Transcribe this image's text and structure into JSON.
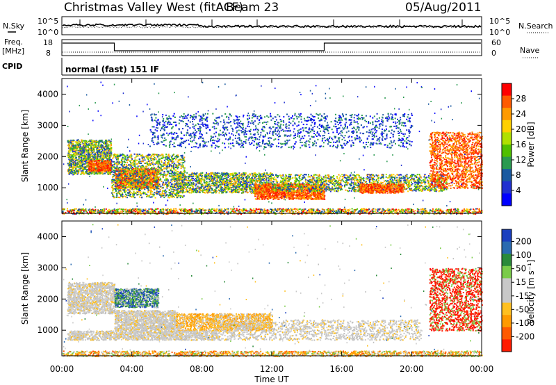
{
  "header": {
    "station": "Christmas Valley West (fitACF)",
    "beam": "Beam 23",
    "date": "05/Aug/2011"
  },
  "summary_panels": {
    "nsky_label": "N.Sky",
    "nsearch_label": "N.Search",
    "nsky_ticks": [
      "10^5",
      "10^0"
    ],
    "nsearch_ticks": [
      "10^5",
      "10^0"
    ],
    "freq_label_1": "Freq.",
    "freq_label_2": "[MHz]",
    "freq_ticks": [
      "18",
      "8"
    ],
    "nave_label": "Nave",
    "nave_ticks": [
      "60",
      "0"
    ],
    "cpid_label": "CPID",
    "cpid_text": "normal (fast) 151 IF"
  },
  "colorbars": {
    "power": {
      "label": "Power [dB]",
      "ticks": [
        "28",
        "24",
        "20",
        "16",
        "12",
        "8",
        "4"
      ],
      "colors": [
        "#ff0000",
        "#ff5a00",
        "#ff9a00",
        "#ffd000",
        "#b0e000",
        "#50c000",
        "#2a9a50",
        "#1a5aa0",
        "#2030d0",
        "#0000ff"
      ]
    },
    "velocity": {
      "label": "Velocity [m s⁻¹]",
      "ticks": [
        "200",
        "100",
        "50",
        "15",
        "-15",
        "-50",
        "-100",
        "-200"
      ],
      "colors": [
        "#1a3fbf",
        "#2a6ab0",
        "#2a8a3a",
        "#7acc4a",
        "#c8c8c8",
        "#c8c8c8",
        "#ffc020",
        "#ff9a00",
        "#ff5a00",
        "#ff1a00"
      ]
    }
  },
  "chart_data": [
    {
      "type": "heatmap",
      "name": "power",
      "xlabel": "Time UT",
      "ylabel": "Slant Range [km]",
      "x_ticks": [
        "00:00",
        "04:00",
        "08:00",
        "12:00",
        "16:00",
        "20:00",
        "00:00"
      ],
      "y_ticks": [
        "1000",
        "2000",
        "3000",
        "4000"
      ],
      "xlim_hours": [
        0,
        24
      ],
      "ylim_km": [
        180,
        4500
      ],
      "regions": [
        {
          "t0": 0.3,
          "t1": 2.8,
          "r0": 1450,
          "r1": 2550,
          "level": "mid"
        },
        {
          "t0": 1.5,
          "t1": 2.8,
          "r0": 1550,
          "r1": 1900,
          "level": "high"
        },
        {
          "t0": 3.0,
          "t1": 5.5,
          "r0": 1000,
          "r1": 1650,
          "level": "high"
        },
        {
          "t0": 2.8,
          "t1": 7.0,
          "r0": 700,
          "r1": 2100,
          "level": "mid"
        },
        {
          "t0": 6.5,
          "t1": 12.0,
          "r0": 850,
          "r1": 1500,
          "level": "mid"
        },
        {
          "t0": 11.0,
          "t1": 15.0,
          "r0": 650,
          "r1": 1150,
          "level": "high"
        },
        {
          "t0": 12.0,
          "t1": 22.0,
          "r0": 900,
          "r1": 1450,
          "level": "mid"
        },
        {
          "t0": 17.0,
          "t1": 19.5,
          "r0": 850,
          "r1": 1150,
          "level": "high"
        },
        {
          "t0": 21.0,
          "t1": 24.0,
          "r0": 1000,
          "r1": 2800,
          "level": "high"
        },
        {
          "t0": 5.0,
          "t1": 20.0,
          "r0": 2300,
          "r1": 3400,
          "level": "low"
        },
        {
          "t0": 0.0,
          "t1": 24.0,
          "r0": 180,
          "r1": 350,
          "level": "mix"
        }
      ]
    },
    {
      "type": "heatmap",
      "name": "velocity",
      "xlabel": "Time UT",
      "ylabel": "Slant Range [km]",
      "x_ticks": [
        "00:00",
        "04:00",
        "08:00",
        "12:00",
        "16:00",
        "20:00",
        "00:00"
      ],
      "y_ticks": [
        "1000",
        "2000",
        "3000",
        "4000"
      ],
      "xlim_hours": [
        0,
        24
      ],
      "ylim_km": [
        180,
        4500
      ],
      "regions": [
        {
          "t0": 0.3,
          "t1": 3.0,
          "r0": 1550,
          "r1": 2550,
          "level": "grey"
        },
        {
          "t0": 3.0,
          "t1": 5.5,
          "r0": 1750,
          "r1": 2350,
          "level": "pos"
        },
        {
          "t0": 3.0,
          "t1": 6.5,
          "r0": 1000,
          "r1": 1650,
          "level": "grey"
        },
        {
          "t0": 6.5,
          "t1": 12.0,
          "r0": 1000,
          "r1": 1550,
          "level": "neg"
        },
        {
          "t0": 0.3,
          "t1": 9.0,
          "r0": 700,
          "r1": 1000,
          "level": "grey"
        },
        {
          "t0": 9.0,
          "t1": 20.5,
          "r0": 700,
          "r1": 1350,
          "level": "grey"
        },
        {
          "t0": 21.0,
          "t1": 24.0,
          "r0": 1000,
          "r1": 3000,
          "level": "red"
        },
        {
          "t0": 0.0,
          "t1": 24.0,
          "r0": 180,
          "r1": 350,
          "level": "negmix"
        }
      ]
    }
  ]
}
